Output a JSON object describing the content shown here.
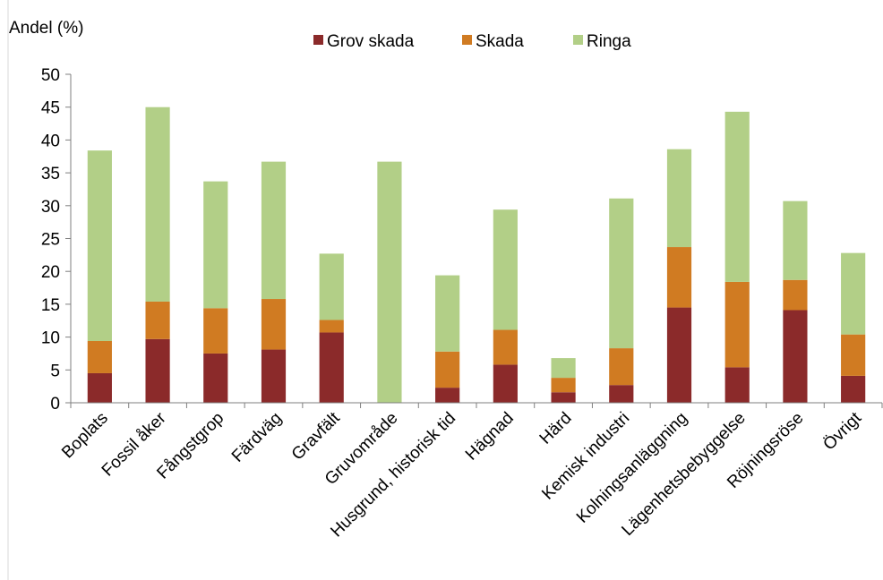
{
  "chart_data": {
    "type": "bar",
    "stacked": true,
    "ylabel": "Andel (%)",
    "xlabel": "",
    "ylim": [
      0,
      50
    ],
    "yticks": [
      0,
      5,
      10,
      15,
      20,
      25,
      30,
      35,
      40,
      45,
      50
    ],
    "grid": false,
    "legend_position": "top",
    "categories": [
      "Boplats",
      "Fossil åker",
      "Fångstgrop",
      "Färdväg",
      "Gravfält",
      "Gruvområde",
      "Husgrund, historisk tid",
      "Hägnad",
      "Härd",
      "Kemisk industri",
      "Kolningsanläggning",
      "Lägenhetsbebyggelse",
      "Röjningsröse",
      "Övrigt"
    ],
    "series": [
      {
        "name": "Grov skada",
        "color": "#8b2a2a",
        "values": [
          4.5,
          9.7,
          7.5,
          8.1,
          10.7,
          0,
          2.3,
          5.8,
          1.6,
          2.7,
          14.5,
          5.4,
          14.1,
          4.1
        ]
      },
      {
        "name": "Skada",
        "color": "#d07b22",
        "values": [
          4.9,
          5.7,
          6.9,
          7.7,
          1.9,
          0,
          5.5,
          5.3,
          2.2,
          5.6,
          9.2,
          13.0,
          4.6,
          6.3
        ]
      },
      {
        "name": "Ringa",
        "color": "#b2cf87",
        "values": [
          29.0,
          29.6,
          19.3,
          20.9,
          10.1,
          36.7,
          11.6,
          18.3,
          3.0,
          22.8,
          14.9,
          25.9,
          12.0,
          12.4
        ]
      }
    ]
  }
}
